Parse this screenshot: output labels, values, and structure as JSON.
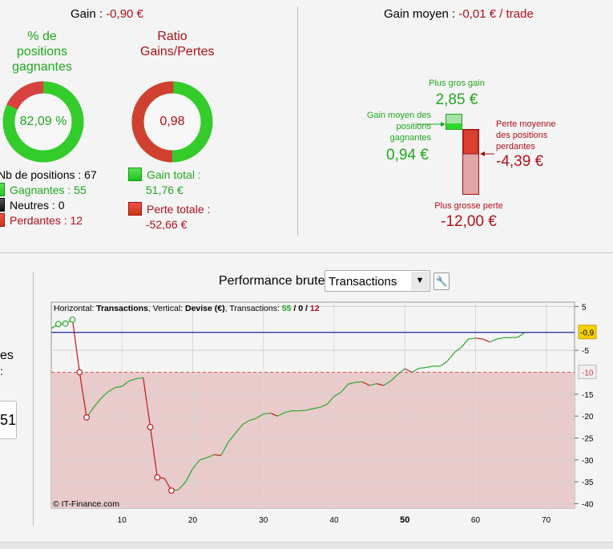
{
  "gain": {
    "label": "Gain : ",
    "value": "-0,90 €"
  },
  "gain_moyen": {
    "label": "Gain moyen : ",
    "value": "-0,01 € / trade"
  },
  "win_pct": {
    "title": "% de positions gagnantes",
    "value": "82,09 %",
    "fraction": 0.8209
  },
  "ratio": {
    "title": "Ratio Gains/Pertes",
    "value": "0,98",
    "gain_share": 0.4957
  },
  "positions": {
    "total": "Nb de positions : 67",
    "gagnantes": "Gagnantes : 55",
    "neutres": "Neutres : 0",
    "perdantes": "Perdantes : 12"
  },
  "totals": {
    "gain_label": "Gain total :",
    "gain_value": "51,76 €",
    "perte_label": "Perte totale :",
    "perte_value": "-52,66 €"
  },
  "stats": {
    "plus_gros_gain_label": "Plus gros gain",
    "plus_gros_gain": "2,85 €",
    "gain_moyen_label": "Gain moyen des positions gagnantes",
    "gain_moyen": "0,94 €",
    "perte_moyenne_label": "Perte moyenne des positions perdantes",
    "perte_moyenne": "-4,39 €",
    "plus_grosse_perte_label": "Plus grosse perte",
    "plus_grosse_perte": "-12,00 €"
  },
  "left_partial": {
    "text1": "es",
    "text2": ":",
    "box_value": "51"
  },
  "perf": {
    "label": "Performance brute",
    "select_value": "Transactions"
  },
  "chart_data": {
    "type": "line",
    "header": {
      "h_label": "Horizontal: ",
      "h_value": "Transactions",
      "v_label": ", Vertical: ",
      "v_value": "Devise (€)",
      "t_label": ", Transactions: ",
      "wins": "55",
      "sep1": " / ",
      "neutral": "0",
      "sep2": " / ",
      "losses": "12"
    },
    "copyright": "© IT-Finance.com",
    "xlim": [
      0,
      74
    ],
    "ylim": [
      -41,
      6
    ],
    "xticks": [
      10,
      20,
      30,
      40,
      50,
      60,
      70
    ],
    "yticks": [
      5,
      -5,
      -15,
      -20,
      -25,
      -30,
      -35,
      -40
    ],
    "current_value": -0.9,
    "current_label": "-0,9",
    "threshold": -10,
    "threshold_label": "-10",
    "x": [
      0,
      1,
      2,
      3,
      4,
      5,
      6,
      7,
      8,
      9,
      10,
      11,
      12,
      13,
      14,
      15,
      16,
      17,
      18,
      19,
      20,
      21,
      22,
      23,
      24,
      25,
      26,
      27,
      28,
      29,
      30,
      31,
      32,
      33,
      34,
      35,
      36,
      37,
      38,
      39,
      40,
      41,
      42,
      43,
      44,
      45,
      46,
      47,
      48,
      49,
      50,
      51,
      52,
      53,
      54,
      55,
      56,
      57,
      58,
      59,
      60,
      61,
      62,
      63,
      64,
      65,
      66,
      67
    ],
    "y": [
      0,
      1,
      1.1,
      2,
      -10,
      -20.3,
      -18,
      -16,
      -14.5,
      -13.5,
      -13.2,
      -12,
      -11.5,
      -11.2,
      -22.5,
      -34,
      -34.2,
      -37,
      -36.8,
      -35,
      -32,
      -30,
      -29.5,
      -28.8,
      -29,
      -26,
      -24,
      -22,
      -21,
      -20.5,
      -19.5,
      -19.3,
      -20,
      -19.2,
      -18.8,
      -18.8,
      -18.7,
      -18.3,
      -18,
      -17.3,
      -15.5,
      -14.5,
      -12.7,
      -12.3,
      -12.2,
      -13,
      -12.6,
      -13,
      -12,
      -10.5,
      -9.2,
      -10,
      -9.1,
      -8.9,
      -8.6,
      -8.6,
      -7.5,
      -5.5,
      -4.3,
      -2.4,
      -2.2,
      -2.4,
      -3.1,
      -2.4,
      -2.1,
      -2.1,
      -2,
      -0.9
    ],
    "markers": [
      1,
      2,
      3,
      4,
      5,
      14,
      15,
      17
    ]
  }
}
